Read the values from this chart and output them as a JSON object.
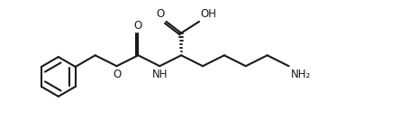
{
  "bg_color": "#ffffff",
  "line_color": "#1a1a1a",
  "line_width": 1.5,
  "fig_width": 4.44,
  "fig_height": 1.54,
  "dpi": 100,
  "xlim": [
    0,
    11
  ],
  "ylim": [
    0,
    3.8
  ]
}
